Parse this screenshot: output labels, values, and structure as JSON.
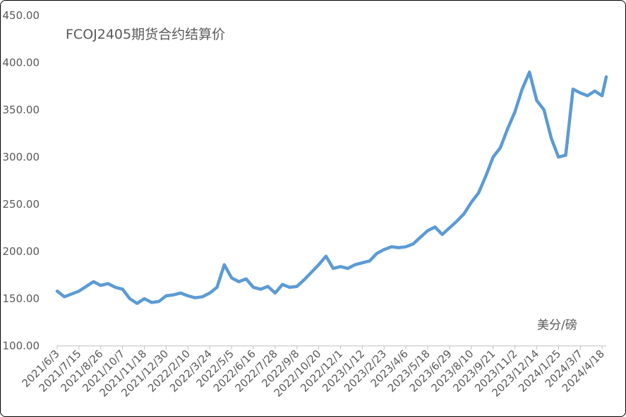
{
  "chart_data": {
    "type": "line",
    "title": "FCOJ2405期货合约结算价",
    "unit_label": "美分/磅",
    "ylim": [
      100,
      450
    ],
    "y_ticks": [
      "100.00",
      "150.00",
      "200.00",
      "250.00",
      "300.00",
      "350.00",
      "400.00",
      "450.00"
    ],
    "x_ticks": [
      "2021/6/3",
      "2021/7/15",
      "2021/8/26",
      "2021/10/7",
      "2021/11/18",
      "2021/12/30",
      "2022/2/10",
      "2022/3/24",
      "2022/5/5",
      "2022/6/16",
      "2022/7/28",
      "2022/9/8",
      "2022/10/20",
      "2022/12/1",
      "2023/1/12",
      "2023/2/23",
      "2023/4/6",
      "2023/5/18",
      "2023/6/29",
      "2023/8/10",
      "2023/9/21",
      "2023/11/2",
      "2023/12/14",
      "2024/1/25",
      "2024/3/7",
      "2024/4/18"
    ],
    "grid": false,
    "line_color": "#5B9BD5",
    "series": [
      {
        "x": [
          "2021/6/3",
          "2021/6/17",
          "2021/7/1",
          "2021/7/15",
          "2021/7/29",
          "2021/8/12",
          "2021/8/26",
          "2021/9/9",
          "2021/9/23",
          "2021/10/7",
          "2021/10/21",
          "2021/11/4",
          "2021/11/18",
          "2021/12/2",
          "2021/12/16",
          "2021/12/30",
          "2022/1/13",
          "2022/1/27",
          "2022/2/10",
          "2022/2/24",
          "2022/3/10",
          "2022/3/24",
          "2022/4/7",
          "2022/4/21",
          "2022/5/5",
          "2022/5/19",
          "2022/6/2",
          "2022/6/16",
          "2022/6/30",
          "2022/7/14",
          "2022/7/28",
          "2022/8/11",
          "2022/8/25",
          "2022/9/8",
          "2022/9/22",
          "2022/10/6",
          "2022/10/20",
          "2022/11/3",
          "2022/11/17",
          "2022/12/1",
          "2022/12/15",
          "2022/12/29",
          "2023/1/12",
          "2023/1/26",
          "2023/2/9",
          "2023/2/23",
          "2023/3/9",
          "2023/3/23",
          "2023/4/6",
          "2023/4/20",
          "2023/5/4",
          "2023/5/18",
          "2023/6/1",
          "2023/6/15",
          "2023/6/29",
          "2023/7/13",
          "2023/7/27",
          "2023/8/10",
          "2023/8/24",
          "2023/9/7",
          "2023/9/21",
          "2023/10/5",
          "2023/10/19",
          "2023/11/2",
          "2023/11/16",
          "2023/11/30",
          "2023/12/14",
          "2023/12/28",
          "2024/1/11",
          "2024/1/25",
          "2024/2/8",
          "2024/2/22",
          "2024/3/7",
          "2024/3/21",
          "2024/4/4",
          "2024/4/18",
          "2024/4/26"
        ],
        "values": [
          158,
          152,
          155,
          158,
          163,
          168,
          164,
          166,
          162,
          160,
          150,
          145,
          150,
          146,
          147,
          153,
          154,
          156,
          153,
          151,
          152,
          156,
          162,
          186,
          172,
          168,
          171,
          162,
          160,
          163,
          156,
          165,
          162,
          163,
          170,
          178,
          186,
          195,
          182,
          184,
          182,
          186,
          188,
          190,
          198,
          202,
          205,
          204,
          205,
          208,
          215,
          222,
          226,
          218,
          225,
          232,
          240,
          252,
          262,
          280,
          300,
          310,
          330,
          348,
          372,
          390,
          360,
          350,
          320,
          300,
          302,
          372,
          368,
          365,
          370,
          365,
          385
        ]
      }
    ]
  }
}
